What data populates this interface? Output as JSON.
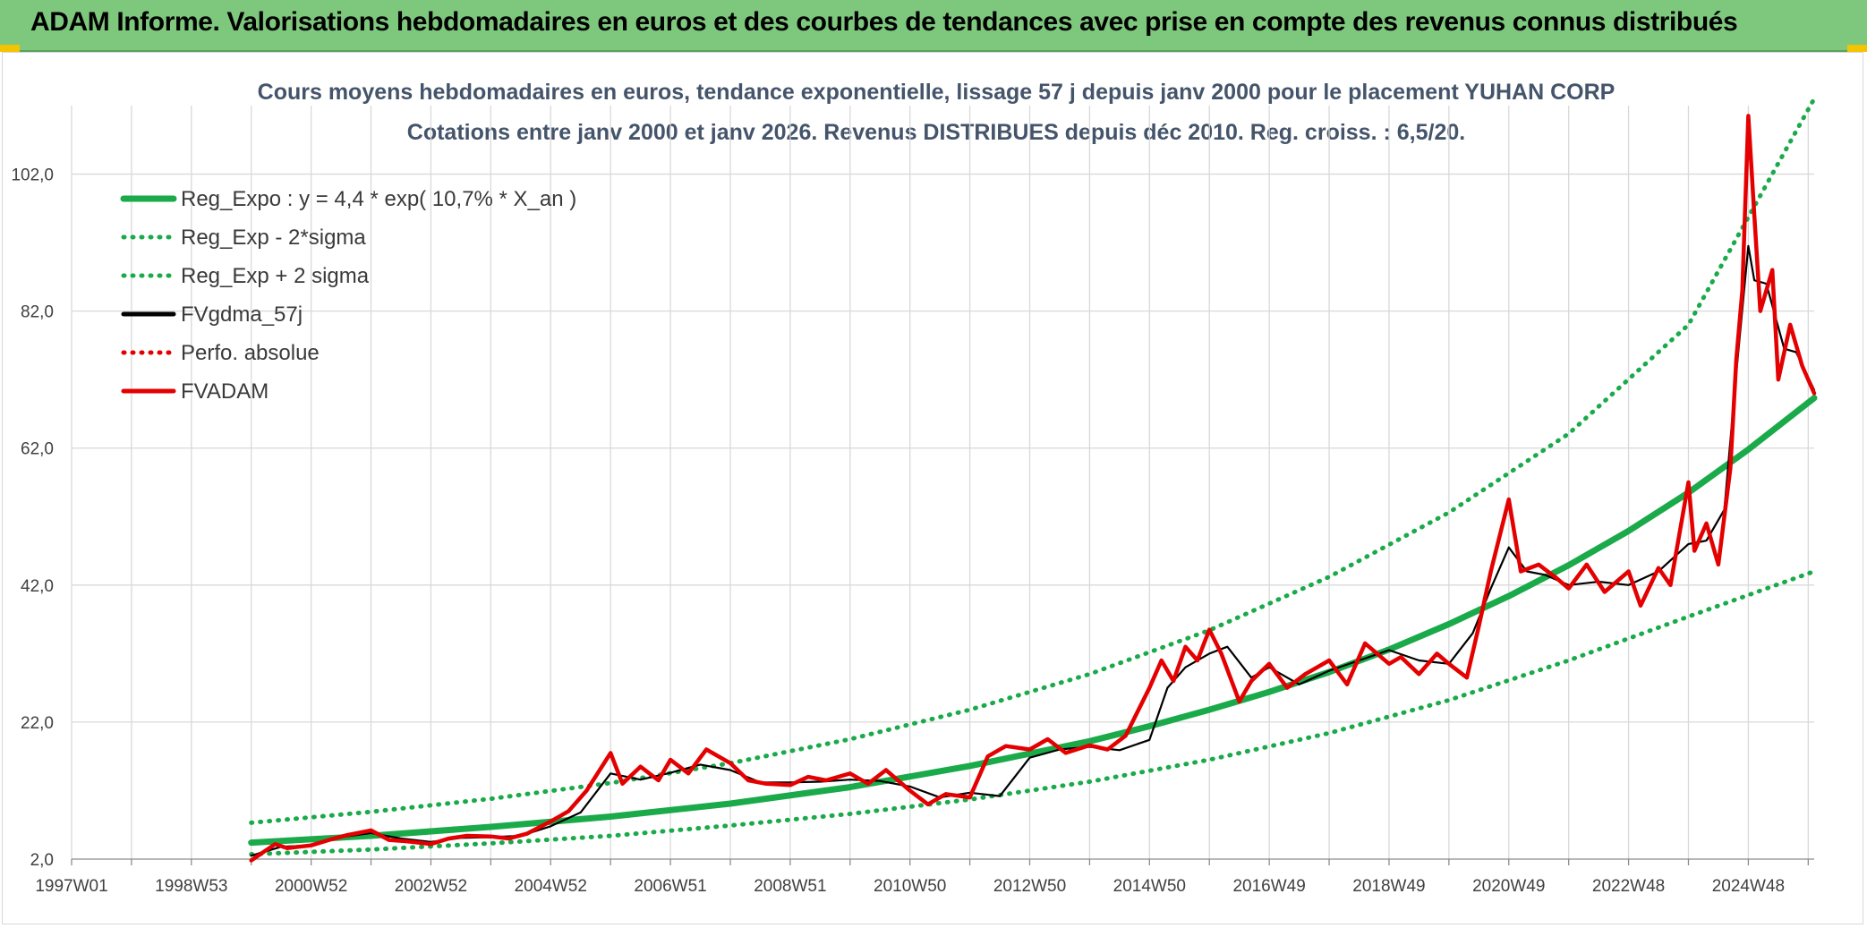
{
  "header": {
    "title": "ADAM Informe. Valorisations hebdomadaires en euros et des courbes de tendances avec prise en compte des revenus connus distribués"
  },
  "colors": {
    "banner": "#7ec87d",
    "reg_expo": "#1aaa4a",
    "sigma_band": "#1aaa4a",
    "fvgdma": "#000000",
    "perfo": "#e40000",
    "fvadam": "#e40000",
    "grid": "#d9d9d9"
  },
  "chart_data": {
    "type": "line",
    "title": "Cours moyens hebdomadaires en euros, tendance exponentielle, lissage 57 j depuis janv 2000 pour le placement YUHAN CORP",
    "subtitle": "Cotations entre janv 2000 et janv 2026. Revenus DISTRIBUES depuis déc 2010. Reg. croiss. : 6,5/20.",
    "xlabel": "",
    "ylabel": "",
    "xlim": [
      1997.0,
      2026.1
    ],
    "ylim": [
      2.0,
      112.0
    ],
    "x_ticks": [
      {
        "label": "1997W01",
        "x": 1997.0
      },
      {
        "label": "1998W53",
        "x": 1999.0
      },
      {
        "label": "2000W52",
        "x": 2001.0
      },
      {
        "label": "2002W52",
        "x": 2003.0
      },
      {
        "label": "2004W52",
        "x": 2005.0
      },
      {
        "label": "2006W51",
        "x": 2007.0
      },
      {
        "label": "2008W51",
        "x": 2009.0
      },
      {
        "label": "2010W50",
        "x": 2011.0
      },
      {
        "label": "2012W50",
        "x": 2013.0
      },
      {
        "label": "2014W50",
        "x": 2015.0
      },
      {
        "label": "2016W49",
        "x": 2017.0
      },
      {
        "label": "2018W49",
        "x": 2019.0
      },
      {
        "label": "2020W49",
        "x": 2021.0
      },
      {
        "label": "2022W48",
        "x": 2023.0
      },
      {
        "label": "2024W48",
        "x": 2025.0
      }
    ],
    "y_ticks": [
      {
        "label": "2,0",
        "value": 2.0
      },
      {
        "label": "22,0",
        "value": 22.0
      },
      {
        "label": "42,0",
        "value": 42.0
      },
      {
        "label": "62,0",
        "value": 62.0
      },
      {
        "label": "82,0",
        "value": 82.0
      },
      {
        "label": "102,0",
        "value": 102.0
      }
    ],
    "grid": true,
    "legend_position": "top-left",
    "series": [
      {
        "name": "Reg_Expo : y = 4,4 * exp( 10,7% *  X_an )",
        "style": "solid-thick",
        "color": "#1aaa4a",
        "x": [
          2000.0,
          2002.0,
          2004.0,
          2006.0,
          2008.0,
          2010.0,
          2012.0,
          2014.0,
          2015.0,
          2016.0,
          2017.0,
          2018.0,
          2019.0,
          2020.0,
          2021.0,
          2022.0,
          2023.0,
          2024.0,
          2025.0,
          2026.1
        ],
        "y": [
          4.4,
          5.4,
          6.7,
          8.2,
          10.1,
          12.5,
          15.6,
          19.2,
          21.4,
          23.8,
          26.4,
          29.3,
          32.6,
          36.3,
          40.4,
          44.9,
          49.9,
          55.5,
          61.8,
          69.3
        ]
      },
      {
        "name": "Reg_Exp - 2*sigma",
        "style": "dotted",
        "color": "#1aaa4a",
        "x": [
          2000.0,
          2002.0,
          2004.0,
          2006.0,
          2008.0,
          2010.0,
          2012.0,
          2014.0,
          2016.0,
          2018.0,
          2020.0,
          2022.0,
          2024.0,
          2026.1
        ],
        "y": [
          2.7,
          3.4,
          4.3,
          5.4,
          6.9,
          8.6,
          10.7,
          13.3,
          16.5,
          20.4,
          25.2,
          31.0,
          37.4,
          44.0
        ]
      },
      {
        "name": "Reg_Exp + 2 sigma",
        "style": "dotted",
        "color": "#1aaa4a",
        "x": [
          2000.0,
          2002.0,
          2004.0,
          2006.0,
          2008.0,
          2010.0,
          2012.0,
          2014.0,
          2016.0,
          2018.0,
          2020.0,
          2022.0,
          2024.0,
          2026.1
        ],
        "y": [
          7.3,
          8.9,
          10.8,
          13.1,
          16.0,
          19.5,
          23.8,
          29.0,
          35.4,
          43.2,
          52.6,
          64.1,
          80.0,
          113.0
        ]
      },
      {
        "name": "FVgdma_57j",
        "style": "solid",
        "color": "#000000",
        "x": [
          2000.0,
          2000.5,
          2001.0,
          2001.5,
          2002.0,
          2002.5,
          2003.0,
          2003.5,
          2004.0,
          2004.5,
          2005.0,
          2005.5,
          2006.0,
          2006.5,
          2007.0,
          2007.5,
          2008.0,
          2008.5,
          2009.0,
          2009.5,
          2010.0,
          2010.5,
          2011.0,
          2011.5,
          2012.0,
          2012.5,
          2013.0,
          2013.5,
          2014.0,
          2014.5,
          2015.0,
          2015.3,
          2015.6,
          2016.0,
          2016.3,
          2016.7,
          2017.0,
          2017.5,
          2018.0,
          2018.5,
          2019.0,
          2019.5,
          2020.0,
          2020.4,
          2020.7,
          2021.0,
          2021.3,
          2021.6,
          2022.0,
          2022.5,
          2023.0,
          2023.5,
          2024.0,
          2024.3,
          2024.6,
          2024.8,
          2025.0,
          2025.1,
          2025.3,
          2025.6,
          2025.8,
          2026.1
        ],
        "y": [
          2.5,
          3.8,
          4.0,
          5.2,
          5.8,
          5.0,
          4.5,
          5.1,
          5.2,
          5.4,
          6.8,
          8.8,
          14.5,
          13.6,
          14.6,
          15.8,
          15.0,
          13.2,
          13.2,
          13.3,
          13.6,
          13.4,
          12.6,
          11.0,
          11.7,
          11.2,
          16.8,
          18.0,
          18.4,
          17.9,
          19.4,
          27.0,
          30.0,
          32.0,
          33.0,
          28.5,
          30.0,
          27.5,
          29.5,
          31.0,
          32.5,
          31.0,
          30.5,
          35.0,
          41.5,
          47.5,
          44.0,
          43.5,
          42.0,
          42.5,
          42.0,
          44.0,
          48.0,
          48.5,
          53.0,
          73.0,
          91.5,
          86.5,
          86.0,
          76.5,
          76.0,
          70.5
        ]
      },
      {
        "name": "Perfo. absolue",
        "style": "dotted",
        "color": "#e40000",
        "x": [],
        "y": []
      },
      {
        "name": "FVADAM",
        "style": "solid-thick",
        "color": "#e40000",
        "x": [
          2000.0,
          2000.2,
          2000.4,
          2000.6,
          2000.8,
          2001.0,
          2001.3,
          2001.6,
          2002.0,
          2002.3,
          2002.6,
          2003.0,
          2003.3,
          2003.6,
          2004.0,
          2004.3,
          2004.6,
          2005.0,
          2005.3,
          2005.6,
          2006.0,
          2006.2,
          2006.5,
          2006.8,
          2007.0,
          2007.3,
          2007.6,
          2008.0,
          2008.3,
          2008.6,
          2009.0,
          2009.3,
          2009.6,
          2010.0,
          2010.3,
          2010.6,
          2011.0,
          2011.3,
          2011.6,
          2012.0,
          2012.3,
          2012.6,
          2013.0,
          2013.3,
          2013.6,
          2014.0,
          2014.3,
          2014.6,
          2015.0,
          2015.2,
          2015.4,
          2015.6,
          2015.8,
          2016.0,
          2016.2,
          2016.5,
          2016.7,
          2017.0,
          2017.3,
          2017.6,
          2018.0,
          2018.3,
          2018.6,
          2019.0,
          2019.2,
          2019.5,
          2019.8,
          2020.0,
          2020.3,
          2020.5,
          2020.7,
          2021.0,
          2021.2,
          2021.5,
          2021.8,
          2022.0,
          2022.3,
          2022.6,
          2023.0,
          2023.2,
          2023.5,
          2023.7,
          2024.0,
          2024.1,
          2024.3,
          2024.5,
          2024.7,
          2024.8,
          2024.9,
          2025.0,
          2025.1,
          2025.2,
          2025.4,
          2025.5,
          2025.7,
          2025.9,
          2026.1
        ],
        "y": [
          1.8,
          3.0,
          4.2,
          3.6,
          3.8,
          4.0,
          4.8,
          5.5,
          6.2,
          4.8,
          4.6,
          4.2,
          5.0,
          5.4,
          5.3,
          5.0,
          5.7,
          7.5,
          9.0,
          12.0,
          17.5,
          13.0,
          15.5,
          13.5,
          16.5,
          14.5,
          18.0,
          16.0,
          13.5,
          13.0,
          12.8,
          14.0,
          13.5,
          14.5,
          13.0,
          15.0,
          12.0,
          10.0,
          11.5,
          11.0,
          17.0,
          18.5,
          18.0,
          19.5,
          17.5,
          18.6,
          18.0,
          20.0,
          27.0,
          31.0,
          28.0,
          33.0,
          31.0,
          35.5,
          32.0,
          25.0,
          28.0,
          30.5,
          27.0,
          29.0,
          31.0,
          27.5,
          33.5,
          30.5,
          31.5,
          29.0,
          32.0,
          30.5,
          28.5,
          36.0,
          44.0,
          54.5,
          44.0,
          45.0,
          43.0,
          41.5,
          45.0,
          41.0,
          44.0,
          39.0,
          44.5,
          42.0,
          57.0,
          47.0,
          51.0,
          45.0,
          59.0,
          75.0,
          85.0,
          110.5,
          96.0,
          82.0,
          88.0,
          72.0,
          80.0,
          74.0,
          70.0
        ]
      }
    ]
  }
}
